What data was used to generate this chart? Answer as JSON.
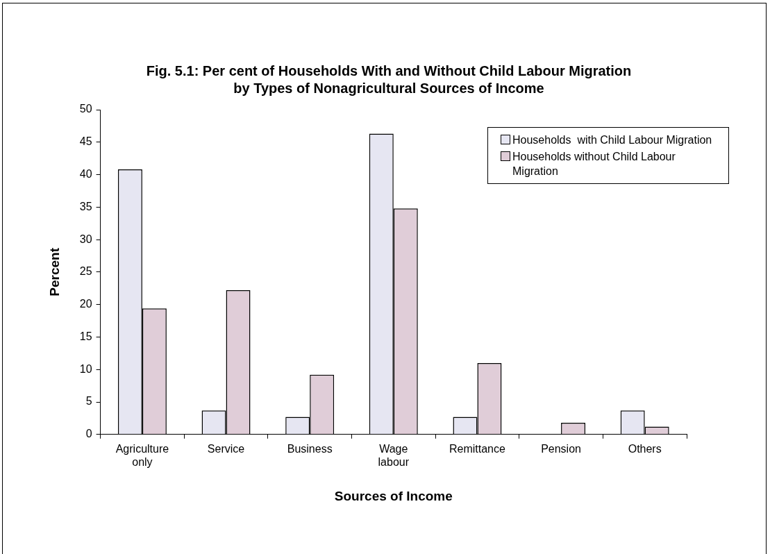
{
  "chart_data": {
    "type": "bar",
    "title": "Fig. 5.1: Per cent of Households With and Without Child Labour Migration by Types of Nonagricultural Sources of Income",
    "xlabel": "Sources of Income",
    "ylabel": "Percent",
    "categories": [
      "Agriculture only",
      "Service",
      "Business",
      "Wage labour",
      "Remittance",
      "Pension",
      "Others"
    ],
    "series": [
      {
        "name": "Households  with Child Labour Migration",
        "color": "#e6e6f2",
        "values": [
          40.8,
          3.7,
          2.7,
          46.3,
          2.7,
          0,
          3.7
        ]
      },
      {
        "name": "Households without Child Labour Migration",
        "color": "#e0cdd8",
        "values": [
          19.4,
          22.2,
          9.2,
          34.8,
          11.0,
          1.8,
          1.2
        ]
      }
    ],
    "ylim": [
      0,
      50
    ],
    "yticks": [
      0,
      5,
      10,
      15,
      20,
      25,
      30,
      35,
      40,
      45,
      50
    ],
    "grid": false,
    "legend": "top right"
  }
}
